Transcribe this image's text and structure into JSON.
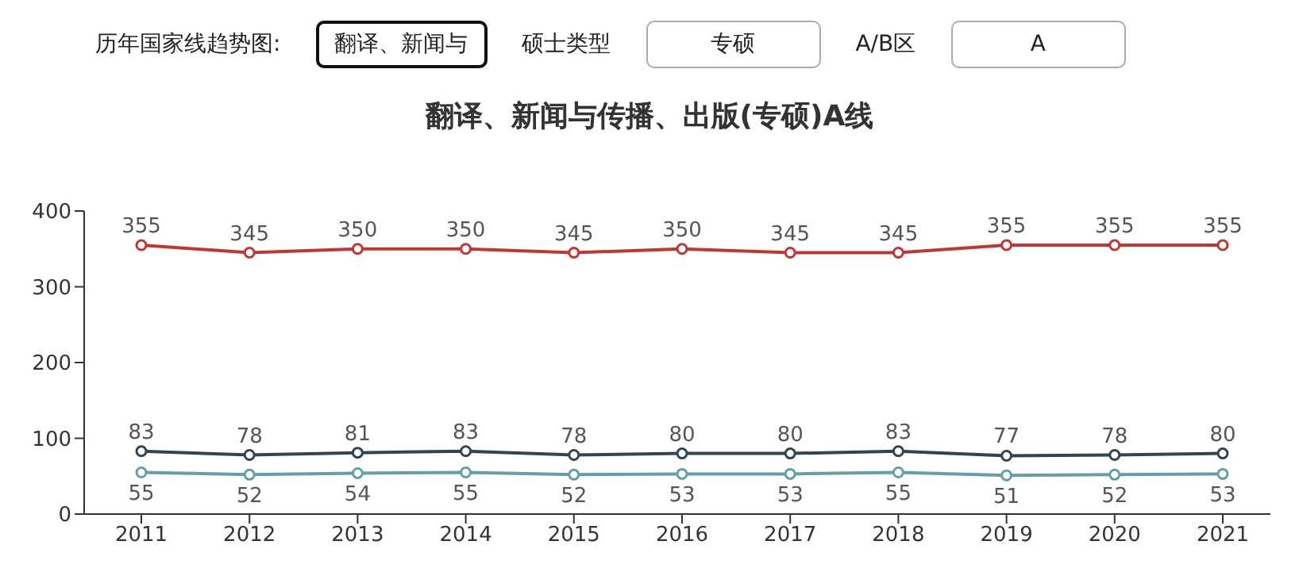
{
  "chart_data": {
    "type": "line",
    "title": "翻译、新闻与传播、出版(专硕)A线",
    "annotations": [
      "历年国家线趋势图:",
      "翻译、新闻与",
      "硕士类型",
      "专硕",
      "A/B区",
      "A"
    ],
    "categories": [
      "2011",
      "2012",
      "2013",
      "2014",
      "2015",
      "2016",
      "2017",
      "2018",
      "2019",
      "2020",
      "2021"
    ],
    "series": [
      {
        "color": "#c23531",
        "values": [
          355,
          345,
          350,
          350,
          345,
          350,
          345,
          345,
          355,
          355,
          355
        ]
      },
      {
        "color": "#2f4554",
        "values": [
          83,
          78,
          81,
          83,
          78,
          80,
          80,
          83,
          77,
          78,
          80
        ]
      },
      {
        "color": "#61a0a8",
        "values": [
          55,
          52,
          54,
          55,
          52,
          53,
          53,
          55,
          51,
          52,
          53
        ]
      }
    ],
    "ylim": [
      0,
      400
    ],
    "yticks": [
      0,
      100,
      200,
      300,
      400
    ],
    "grid": false,
    "legend": false,
    "marker": "circle",
    "line_style": "solid",
    "data_labels": true
  }
}
